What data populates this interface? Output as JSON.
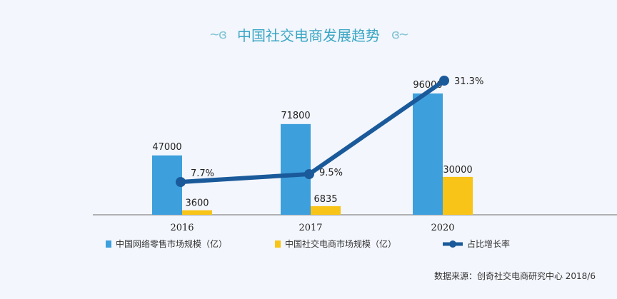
{
  "title": "中国社交电商发展趋势",
  "ornament_left": "~ɞ",
  "ornament_right": "ɞ~",
  "legend": {
    "retail": "中国网络零售市场规模（亿）",
    "social": "中国社交电商市场规模（亿）",
    "rate": "占比增长率"
  },
  "source": "数据来源：创奇社交电商研究中心 2018/6",
  "colors": {
    "retail": "#3d9fdc",
    "social": "#f8c417",
    "rate": "#1a5a9a",
    "axis": "#888888",
    "title": "#3aa6c4"
  },
  "chart_data": {
    "type": "bar",
    "title": "中国社交电商发展趋势",
    "categories": [
      "2016",
      "2017",
      "2020"
    ],
    "series": [
      {
        "name": "中国网络零售市场规模（亿）",
        "type": "bar",
        "values": [
          47000,
          71800,
          96000
        ]
      },
      {
        "name": "中国社交电商市场规模（亿）",
        "type": "bar",
        "values": [
          3600,
          6835,
          30000
        ]
      },
      {
        "name": "占比增长率",
        "type": "line",
        "values": [
          7.7,
          9.5,
          31.3
        ],
        "labels": [
          "7.7%",
          "9.5%",
          "31.3%"
        ]
      }
    ],
    "xlabel": "",
    "ylabel": "",
    "grid": false,
    "legend_position": "bottom",
    "source": "数据来源：创奇社交电商研究中心 2018/6"
  }
}
